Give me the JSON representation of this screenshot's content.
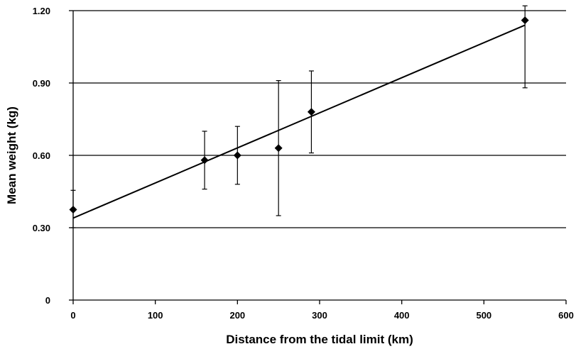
{
  "chart_data": {
    "type": "scatter",
    "title": "",
    "xlabel": "Distance from the tidal limit (km)",
    "ylabel": "Mean weight (kg)",
    "xlim": [
      0,
      600
    ],
    "ylim": [
      0,
      1.2
    ],
    "x_ticks": [
      0,
      100,
      200,
      300,
      400,
      500,
      600
    ],
    "x_tick_labels": [
      "0",
      "100",
      "200",
      "300",
      "400",
      "500",
      "600"
    ],
    "y_ticks": [
      0,
      0.3,
      0.6,
      0.9,
      1.2
    ],
    "y_tick_labels": [
      "0",
      "0.30",
      "0.60",
      "0.90",
      "1.20"
    ],
    "grid": "horizontal",
    "legend": "none",
    "marker": "diamond",
    "color": "#000000",
    "series": [
      {
        "x": [
          0,
          160,
          200,
          250,
          290,
          550
        ],
        "y": [
          0.375,
          0.58,
          0.6,
          0.63,
          0.78,
          1.16
        ],
        "error_low": [
          0.3,
          0.46,
          0.48,
          0.35,
          0.61,
          0.88
        ],
        "error_high": [
          0.455,
          0.7,
          0.72,
          0.91,
          0.95,
          1.22
        ]
      }
    ],
    "trend_line": {
      "x": [
        0,
        550
      ],
      "y": [
        0.34,
        1.14
      ]
    }
  }
}
